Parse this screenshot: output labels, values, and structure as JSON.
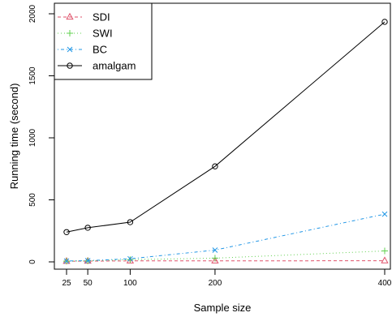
{
  "chart_data": {
    "type": "line",
    "title": "",
    "xlabel": "Sample size",
    "ylabel": "Running time (second)",
    "x": [
      25,
      50,
      100,
      200,
      400
    ],
    "x_ticks": [
      25,
      50,
      100,
      200,
      400
    ],
    "y_ticks": [
      0,
      500,
      1000,
      1500,
      2000
    ],
    "xlim": [
      25,
      400
    ],
    "ylim": [
      0,
      2000
    ],
    "grid": false,
    "legend_position": "top-left",
    "series": [
      {
        "name": "SDI",
        "values": [
          5,
          6,
          8,
          8,
          9
        ],
        "color": "#DF536B",
        "marker": "triangle",
        "dash": "dashed"
      },
      {
        "name": "SWI",
        "values": [
          6,
          8,
          18,
          30,
          88
        ],
        "color": "#61D04F",
        "marker": "plus",
        "dash": "dotted"
      },
      {
        "name": "BC",
        "values": [
          7,
          10,
          25,
          95,
          385
        ],
        "color": "#2297E6",
        "marker": "cross",
        "dash": "dotdash"
      },
      {
        "name": "amalgam",
        "values": [
          240,
          275,
          320,
          770,
          1935
        ],
        "color": "#000000",
        "marker": "circle",
        "dash": "solid"
      }
    ]
  }
}
